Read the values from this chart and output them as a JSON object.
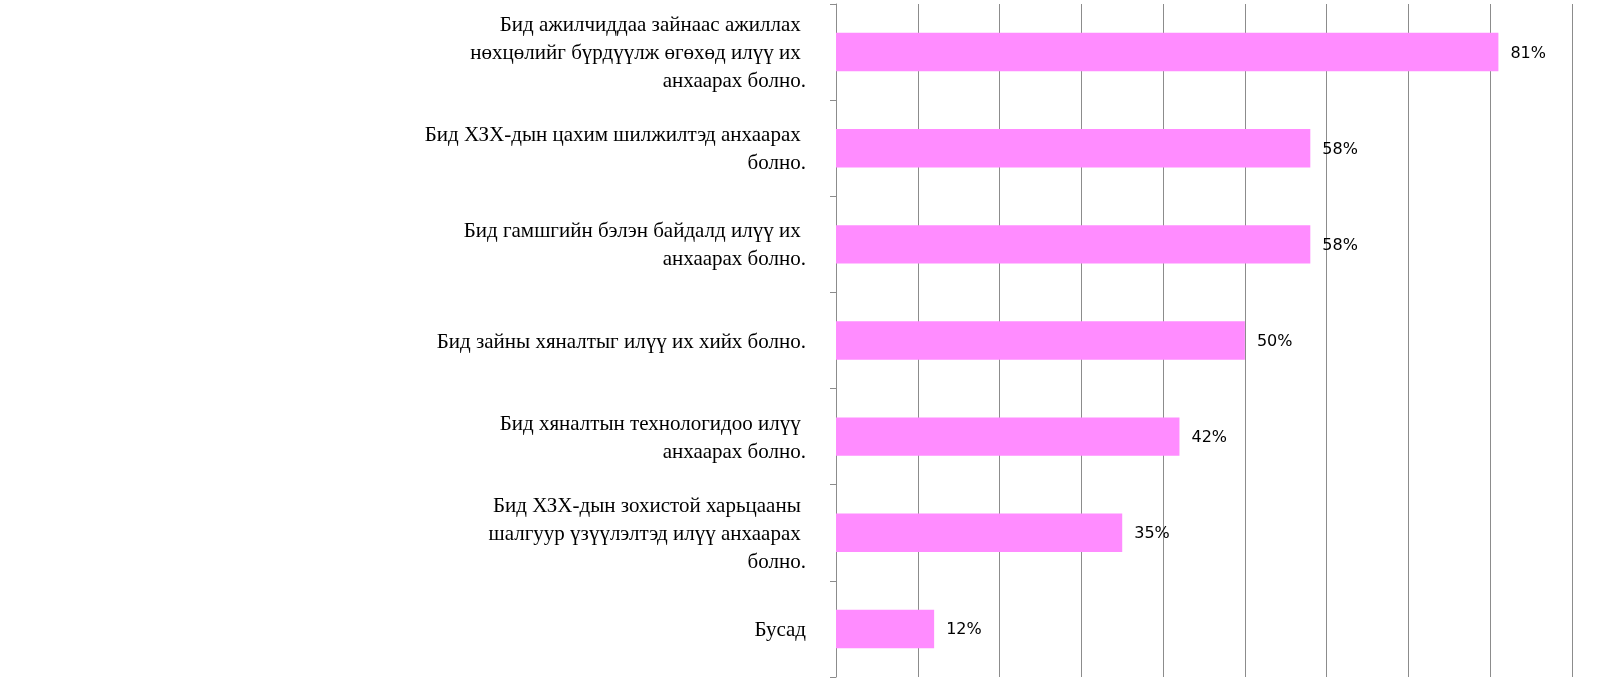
{
  "chart_data": {
    "type": "bar",
    "orientation": "horizontal",
    "categories": [
      "Бид ажилчиддаа зайнаас ажиллах нөхцөлийг бүрдүүлж өгөхөд илүү их анхаарах болно.",
      "Бид ХЗХ-дын цахим шилжилтэд анхаарах болно.",
      "Бид гамшгийн бэлэн байдалд илүү их анхаарах болно.",
      "Бид зайны хяналтыг илүү их хийх болно.",
      "Бид хяналтын технологидоо илүү анхаарах болно.",
      "Бид ХЗХ-дын зохистой харьцааны шалгуур үзүүлэлтэд илүү анхаарах болно.",
      "Бусад"
    ],
    "values": [
      81,
      58,
      58,
      50,
      42,
      35,
      12
    ],
    "value_labels": [
      "81%",
      "58%",
      "58%",
      "50%",
      "42%",
      "35%",
      "12%"
    ],
    "color": "#ff8cff",
    "xlim": [
      0,
      90
    ],
    "xticks": [
      {
        "value": 0,
        "label": null
      },
      {
        "value": 10,
        "label": null
      },
      {
        "value": 20,
        "label": null
      },
      {
        "value": 30,
        "label": null
      },
      {
        "value": 40,
        "label": null
      },
      {
        "value": 50,
        "label": null
      },
      {
        "value": 60,
        "label": null
      },
      {
        "value": 70,
        "label": null
      },
      {
        "value": 80,
        "label": null
      },
      {
        "value": 90,
        "label": null
      }
    ],
    "tick_labels": "y",
    "grid": "x"
  }
}
